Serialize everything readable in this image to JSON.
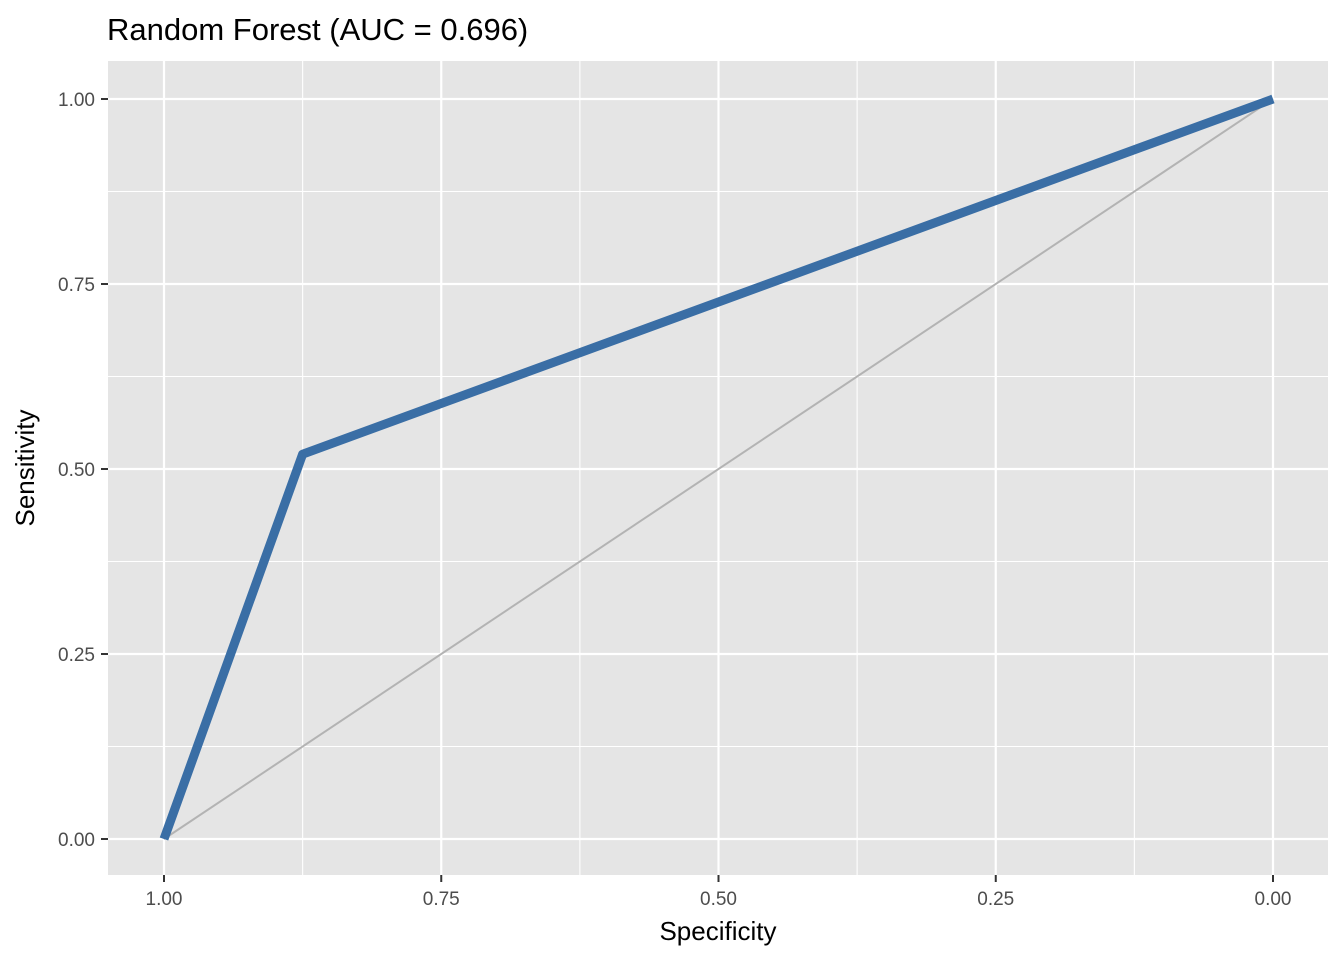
{
  "chart_data": {
    "type": "line",
    "title": "Random Forest (AUC = 0.696)",
    "xlabel": "Specificity",
    "ylabel": "Sensitivity",
    "xlim": [
      1.0,
      0.0
    ],
    "ylim": [
      0.0,
      1.0
    ],
    "x_reversed": true,
    "grid": true,
    "x_ticks": [
      {
        "value": 1.0,
        "label": "1.00"
      },
      {
        "value": 0.75,
        "label": "0.75"
      },
      {
        "value": 0.5,
        "label": "0.50"
      },
      {
        "value": 0.25,
        "label": "0.25"
      },
      {
        "value": 0.0,
        "label": "0.00"
      }
    ],
    "y_ticks": [
      {
        "value": 0.0,
        "label": "0.00"
      },
      {
        "value": 0.25,
        "label": "0.25"
      },
      {
        "value": 0.5,
        "label": "0.50"
      },
      {
        "value": 0.75,
        "label": "0.75"
      },
      {
        "value": 1.0,
        "label": "1.00"
      }
    ],
    "series": [
      {
        "color": "#3a6ea5",
        "points": [
          {
            "x": 1.0,
            "y": 0.0
          },
          {
            "x": 0.875,
            "y": 0.52
          },
          {
            "x": 0.0,
            "y": 1.0
          }
        ]
      }
    ],
    "reference_line": {
      "color": "#b3b3b3",
      "points": [
        {
          "x": 1.0,
          "y": 0.0
        },
        {
          "x": 0.0,
          "y": 1.0
        }
      ]
    },
    "colors": {
      "panel_background": "#e5e5e5",
      "grid": "#ffffff",
      "roc_curve": "#3a6ea5",
      "diagonal": "#b3b3b3"
    }
  }
}
